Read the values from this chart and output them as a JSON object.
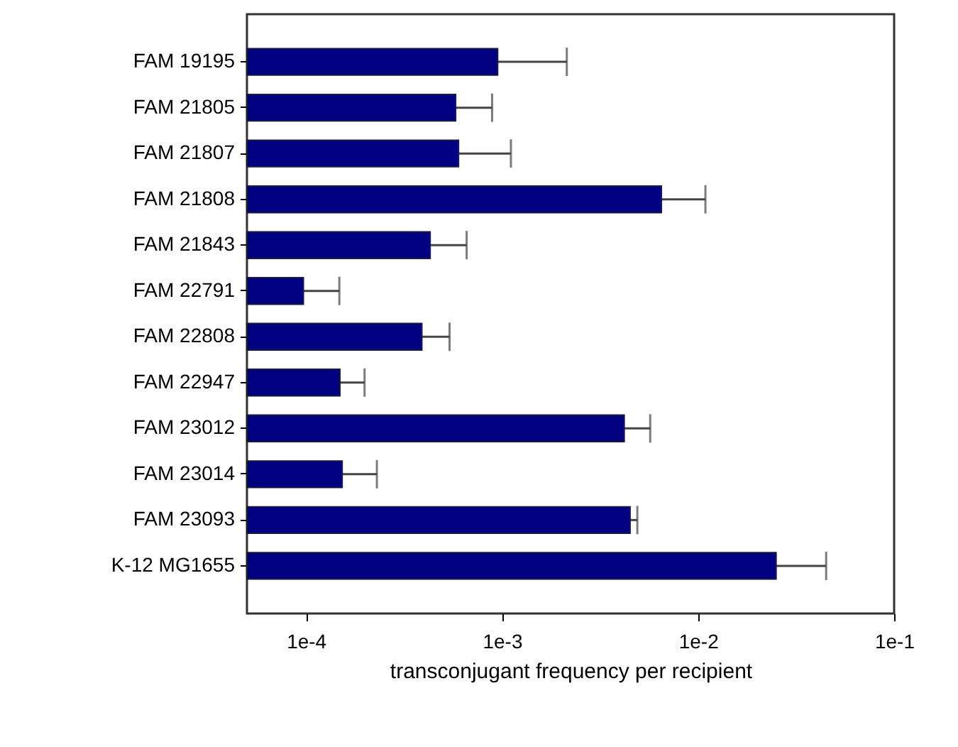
{
  "chart_data": {
    "type": "bar",
    "orientation": "horizontal",
    "xlabel": "transconjugant frequency per recipient",
    "categories": [
      "FAM 19195",
      "FAM 21805",
      "FAM 21807",
      "FAM 21808",
      "FAM 21843",
      "FAM 22791",
      "FAM 22808",
      "FAM 22947",
      "FAM 23012",
      "FAM 23014",
      "FAM 23093",
      "K-12 MG1655"
    ],
    "values": [
      0.00095,
      0.00058,
      0.0006,
      0.0065,
      0.00043,
      9.7e-05,
      0.00039,
      0.000149,
      0.0042,
      0.000153,
      0.0045,
      0.025
    ],
    "errors": [
      [
        0.00095,
        0.00214
      ],
      [
        0.00058,
        0.00089
      ],
      [
        0.0006,
        0.00111
      ],
      [
        0.0065,
        0.0109
      ],
      [
        0.00043,
        0.00066
      ],
      [
        9.7e-05,
        0.000148
      ],
      [
        0.00039,
        0.00054
      ],
      [
        0.000149,
        0.000199
      ],
      [
        0.0042,
        0.0057
      ],
      [
        0.000153,
        0.00023
      ],
      [
        0.0045,
        0.0049
      ],
      [
        0.025,
        0.045
      ]
    ],
    "color": "#000080",
    "log": "x",
    "xlim": [
      5e-05,
      0.1
    ],
    "xticks": [
      {
        "value": 0.0001,
        "label": "1e-4"
      },
      {
        "value": 0.001,
        "label": "1e-3"
      },
      {
        "value": 0.01,
        "label": "1e-2"
      },
      {
        "value": 0.1,
        "label": "1e-1"
      }
    ],
    "grid": false
  }
}
